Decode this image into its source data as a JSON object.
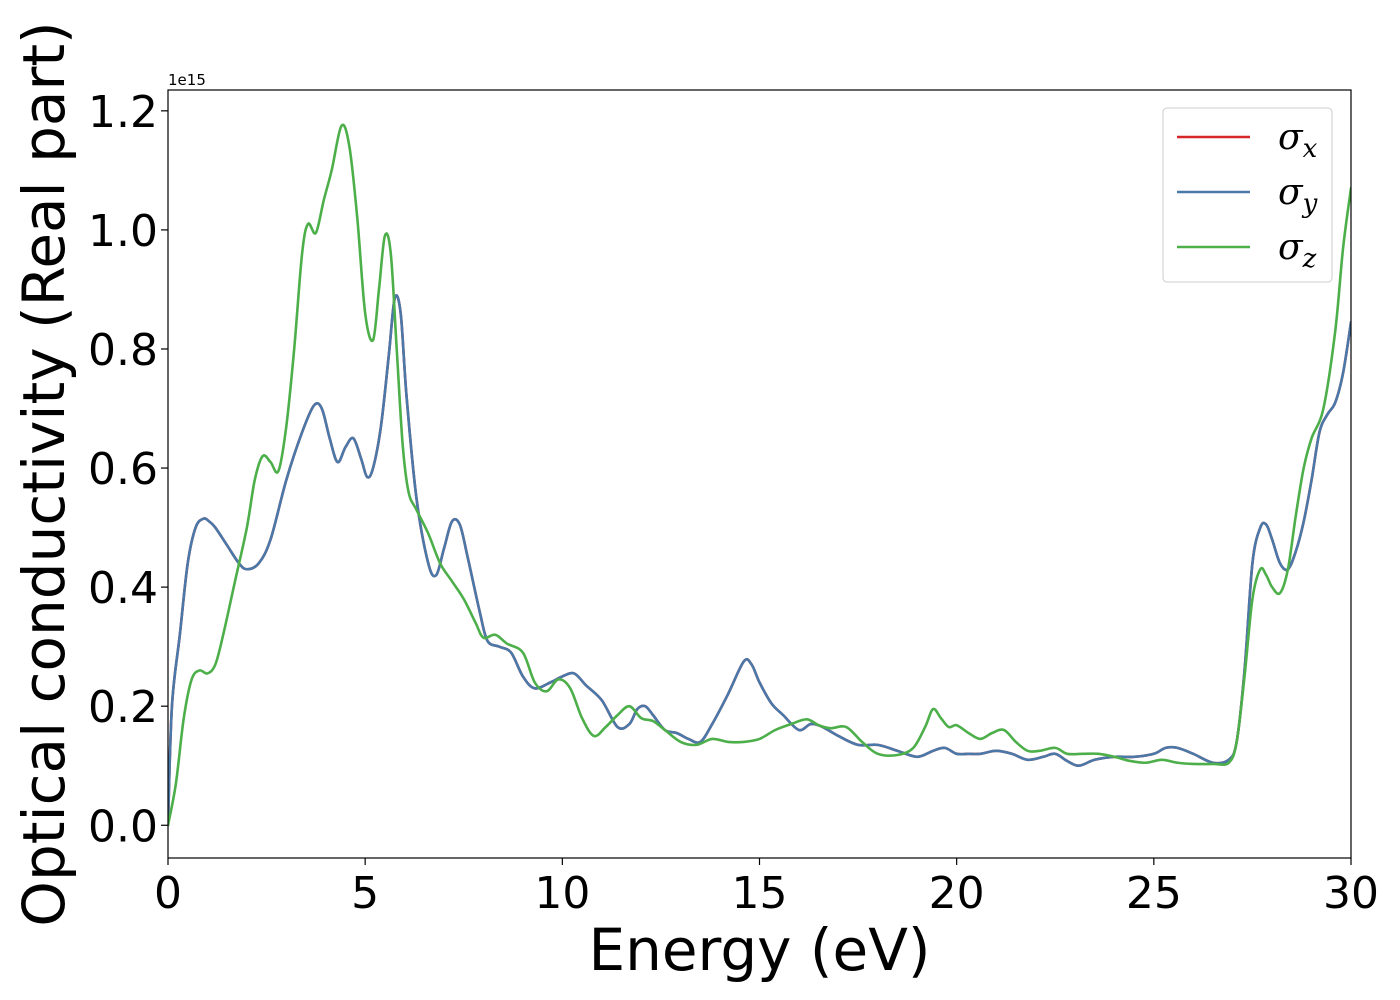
{
  "chart_data": {
    "type": "line",
    "xlabel": "Energy (eV)",
    "ylabel": "Optical conductivity (Real part)",
    "y_multiplier_label": "1e15",
    "xlim": [
      0,
      30
    ],
    "ylim": [
      -0.055,
      1.235
    ],
    "x_ticks": [
      0,
      5,
      10,
      15,
      20,
      25,
      30
    ],
    "x_tick_labels": [
      "0",
      "5",
      "10",
      "15",
      "20",
      "25",
      "30"
    ],
    "y_ticks": [
      0.0,
      0.2,
      0.4,
      0.6,
      0.8,
      1.0,
      1.2
    ],
    "y_tick_labels": [
      "0.0",
      "0.2",
      "0.4",
      "0.6",
      "0.8",
      "1.0",
      "1.2"
    ],
    "grid": false,
    "legend_position": "top-right",
    "series": [
      {
        "name": "σ",
        "subscript": "x",
        "color": "#d62728",
        "x": [
          0,
          0.1,
          0.3,
          0.5,
          0.7,
          0.9,
          1.05,
          1.2,
          1.5,
          1.8,
          2.0,
          2.3,
          2.6,
          3.0,
          3.4,
          3.7,
          3.9,
          4.1,
          4.3,
          4.5,
          4.7,
          4.9,
          5.05,
          5.2,
          5.4,
          5.6,
          5.75,
          5.9,
          6.05,
          6.3,
          6.6,
          6.8,
          7.0,
          7.2,
          7.4,
          7.6,
          7.9,
          8.1,
          8.4,
          8.7,
          9.0,
          9.3,
          9.7,
          10.0,
          10.3,
          10.6,
          11.0,
          11.4,
          11.7,
          11.9,
          12.1,
          12.3,
          12.6,
          12.9,
          13.2,
          13.5,
          13.8,
          14.2,
          14.6,
          14.8,
          15.0,
          15.3,
          15.6,
          16.0,
          16.3,
          16.6,
          17.0,
          17.5,
          18.0,
          18.5,
          19.0,
          19.4,
          19.7,
          20.0,
          20.3,
          20.6,
          21.0,
          21.4,
          21.8,
          22.2,
          22.5,
          22.8,
          23.1,
          23.5,
          24.0,
          24.5,
          25.0,
          25.3,
          25.6,
          26.0,
          26.5,
          26.9,
          27.1,
          27.3,
          27.5,
          27.7,
          27.85,
          28.0,
          28.2,
          28.4,
          28.6,
          28.8,
          29.0,
          29.2,
          29.4,
          29.6,
          29.8,
          30.0
        ],
        "values": [
          0.0,
          0.2,
          0.32,
          0.44,
          0.5,
          0.515,
          0.51,
          0.5,
          0.47,
          0.44,
          0.43,
          0.44,
          0.48,
          0.58,
          0.66,
          0.705,
          0.7,
          0.65,
          0.61,
          0.635,
          0.65,
          0.615,
          0.585,
          0.6,
          0.67,
          0.79,
          0.885,
          0.86,
          0.72,
          0.55,
          0.44,
          0.42,
          0.465,
          0.51,
          0.505,
          0.45,
          0.36,
          0.31,
          0.3,
          0.29,
          0.25,
          0.23,
          0.24,
          0.25,
          0.255,
          0.235,
          0.21,
          0.165,
          0.17,
          0.195,
          0.2,
          0.185,
          0.16,
          0.155,
          0.145,
          0.14,
          0.17,
          0.22,
          0.275,
          0.27,
          0.24,
          0.205,
          0.185,
          0.16,
          0.17,
          0.165,
          0.15,
          0.135,
          0.135,
          0.125,
          0.115,
          0.125,
          0.13,
          0.12,
          0.12,
          0.12,
          0.125,
          0.12,
          0.11,
          0.115,
          0.12,
          0.108,
          0.1,
          0.11,
          0.115,
          0.115,
          0.12,
          0.13,
          0.13,
          0.12,
          0.105,
          0.11,
          0.14,
          0.26,
          0.44,
          0.5,
          0.505,
          0.48,
          0.44,
          0.43,
          0.46,
          0.51,
          0.58,
          0.66,
          0.69,
          0.71,
          0.76,
          0.845
        ]
      },
      {
        "name": "σ",
        "subscript": "y",
        "color": "#4a78a8",
        "x": [
          0,
          0.1,
          0.3,
          0.5,
          0.7,
          0.9,
          1.05,
          1.2,
          1.5,
          1.8,
          2.0,
          2.3,
          2.6,
          3.0,
          3.4,
          3.7,
          3.9,
          4.1,
          4.3,
          4.5,
          4.7,
          4.9,
          5.05,
          5.2,
          5.4,
          5.6,
          5.75,
          5.9,
          6.05,
          6.3,
          6.6,
          6.8,
          7.0,
          7.2,
          7.4,
          7.6,
          7.9,
          8.1,
          8.4,
          8.7,
          9.0,
          9.3,
          9.7,
          10.0,
          10.3,
          10.6,
          11.0,
          11.4,
          11.7,
          11.9,
          12.1,
          12.3,
          12.6,
          12.9,
          13.2,
          13.5,
          13.8,
          14.2,
          14.6,
          14.8,
          15.0,
          15.3,
          15.6,
          16.0,
          16.3,
          16.6,
          17.0,
          17.5,
          18.0,
          18.5,
          19.0,
          19.4,
          19.7,
          20.0,
          20.3,
          20.6,
          21.0,
          21.4,
          21.8,
          22.2,
          22.5,
          22.8,
          23.1,
          23.5,
          24.0,
          24.5,
          25.0,
          25.3,
          25.6,
          26.0,
          26.5,
          26.9,
          27.1,
          27.3,
          27.5,
          27.7,
          27.85,
          28.0,
          28.2,
          28.4,
          28.6,
          28.8,
          29.0,
          29.2,
          29.4,
          29.6,
          29.8,
          30.0
        ],
        "values": [
          0.0,
          0.2,
          0.32,
          0.44,
          0.5,
          0.515,
          0.51,
          0.5,
          0.47,
          0.44,
          0.43,
          0.44,
          0.48,
          0.58,
          0.66,
          0.705,
          0.7,
          0.65,
          0.61,
          0.635,
          0.65,
          0.615,
          0.585,
          0.6,
          0.67,
          0.79,
          0.885,
          0.86,
          0.72,
          0.55,
          0.44,
          0.42,
          0.465,
          0.51,
          0.505,
          0.45,
          0.36,
          0.31,
          0.3,
          0.29,
          0.25,
          0.23,
          0.24,
          0.25,
          0.255,
          0.235,
          0.21,
          0.165,
          0.17,
          0.195,
          0.2,
          0.185,
          0.16,
          0.155,
          0.145,
          0.14,
          0.17,
          0.22,
          0.275,
          0.27,
          0.24,
          0.205,
          0.185,
          0.16,
          0.17,
          0.165,
          0.15,
          0.135,
          0.135,
          0.125,
          0.115,
          0.125,
          0.13,
          0.12,
          0.12,
          0.12,
          0.125,
          0.12,
          0.11,
          0.115,
          0.12,
          0.108,
          0.1,
          0.11,
          0.115,
          0.115,
          0.12,
          0.13,
          0.13,
          0.12,
          0.105,
          0.11,
          0.14,
          0.26,
          0.44,
          0.5,
          0.505,
          0.48,
          0.44,
          0.43,
          0.46,
          0.51,
          0.58,
          0.66,
          0.69,
          0.71,
          0.76,
          0.845
        ]
      },
      {
        "name": "σ",
        "subscript": "z",
        "color": "#4daf4a",
        "x": [
          0,
          0.2,
          0.4,
          0.6,
          0.8,
          1.0,
          1.2,
          1.4,
          1.7,
          2.0,
          2.2,
          2.4,
          2.6,
          2.8,
          3.0,
          3.2,
          3.4,
          3.55,
          3.75,
          3.95,
          4.15,
          4.4,
          4.6,
          4.8,
          5.0,
          5.2,
          5.35,
          5.5,
          5.65,
          5.8,
          5.95,
          6.1,
          6.3,
          6.6,
          6.9,
          7.2,
          7.5,
          7.8,
          8.0,
          8.3,
          8.6,
          9.0,
          9.3,
          9.6,
          9.9,
          10.2,
          10.5,
          10.8,
          11.1,
          11.4,
          11.7,
          12.0,
          12.3,
          12.6,
          13.0,
          13.4,
          13.8,
          14.2,
          14.6,
          15.0,
          15.4,
          15.8,
          16.2,
          16.5,
          16.8,
          17.2,
          17.6,
          18.0,
          18.5,
          18.9,
          19.2,
          19.4,
          19.6,
          19.8,
          20.0,
          20.3,
          20.6,
          20.9,
          21.2,
          21.5,
          21.8,
          22.1,
          22.5,
          22.8,
          23.2,
          23.6,
          24.0,
          24.4,
          24.8,
          25.2,
          25.6,
          26.0,
          26.5,
          26.9,
          27.1,
          27.3,
          27.5,
          27.7,
          27.85,
          28.0,
          28.2,
          28.4,
          28.6,
          28.8,
          29.0,
          29.3,
          29.6,
          29.8,
          30.0
        ],
        "values": [
          0.0,
          0.07,
          0.18,
          0.245,
          0.26,
          0.255,
          0.27,
          0.32,
          0.41,
          0.5,
          0.58,
          0.62,
          0.61,
          0.595,
          0.67,
          0.8,
          0.96,
          1.01,
          0.995,
          1.05,
          1.1,
          1.175,
          1.14,
          1.02,
          0.86,
          0.815,
          0.9,
          0.99,
          0.96,
          0.8,
          0.64,
          0.56,
          0.53,
          0.49,
          0.44,
          0.41,
          0.38,
          0.34,
          0.315,
          0.32,
          0.305,
          0.29,
          0.24,
          0.225,
          0.245,
          0.23,
          0.18,
          0.15,
          0.165,
          0.185,
          0.2,
          0.18,
          0.175,
          0.16,
          0.14,
          0.135,
          0.145,
          0.14,
          0.14,
          0.145,
          0.16,
          0.17,
          0.178,
          0.168,
          0.163,
          0.165,
          0.14,
          0.12,
          0.118,
          0.13,
          0.165,
          0.195,
          0.18,
          0.165,
          0.168,
          0.155,
          0.145,
          0.155,
          0.16,
          0.14,
          0.125,
          0.125,
          0.13,
          0.12,
          0.12,
          0.12,
          0.115,
          0.108,
          0.105,
          0.11,
          0.105,
          0.103,
          0.103,
          0.105,
          0.14,
          0.25,
          0.38,
          0.43,
          0.42,
          0.4,
          0.39,
          0.43,
          0.52,
          0.6,
          0.65,
          0.7,
          0.83,
          0.97,
          1.07
        ]
      }
    ]
  }
}
